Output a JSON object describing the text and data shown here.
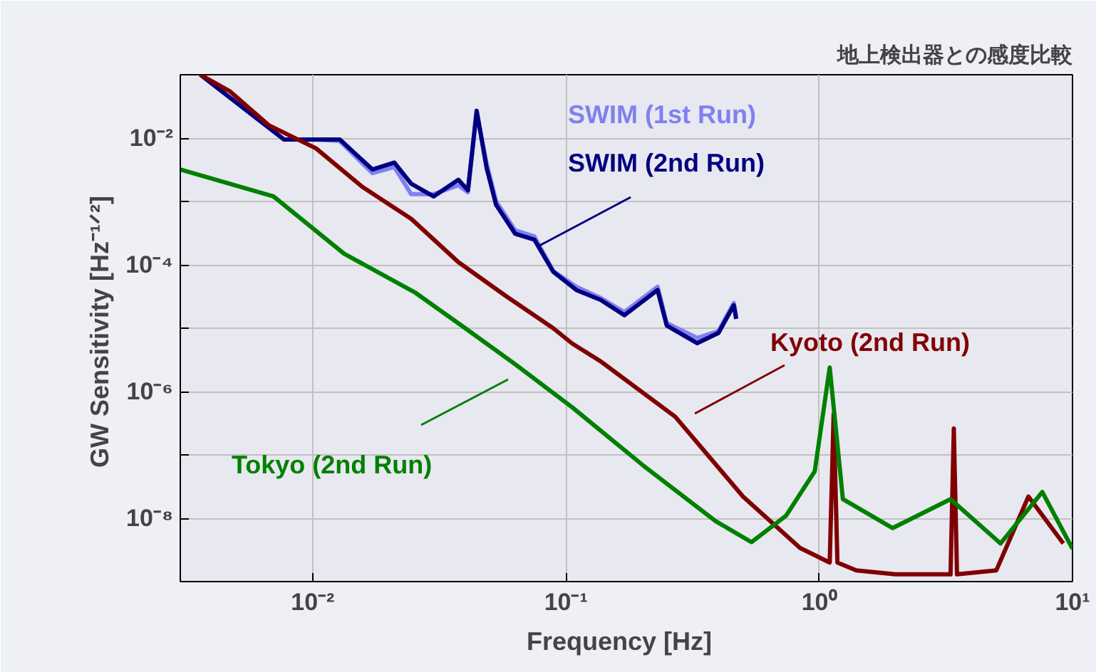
{
  "chart_data": {
    "type": "line",
    "title": "地上検出器との感度比較",
    "xlabel": "Frequency   [Hz]",
    "ylabel": "GW Sensitivity  [Hz⁻¹ᐟ²]",
    "log": "xy",
    "grid": true,
    "legend": false,
    "line_style": "solid",
    "marker": "none",
    "xlim": [
      0.003,
      10
    ],
    "ylim": [
      1e-09,
      0.1
    ],
    "xticks": [
      {
        "value": 0.01,
        "label": "10⁻²"
      },
      {
        "value": 0.1,
        "label": "10⁻¹"
      },
      {
        "value": 1,
        "label": "10⁰"
      },
      {
        "value": 10,
        "label": "10¹"
      }
    ],
    "yticks": [
      {
        "value": 1e-09,
        "label": null
      },
      {
        "value": 1e-08,
        "label": "10⁻⁸"
      },
      {
        "value": 1e-07,
        "label": null
      },
      {
        "value": 1e-06,
        "label": "10⁻⁶"
      },
      {
        "value": 1e-05,
        "label": null
      },
      {
        "value": 0.0001,
        "label": "10⁻⁴"
      },
      {
        "value": 0.001,
        "label": null
      },
      {
        "value": 0.01,
        "label": "10⁻²"
      },
      {
        "value": 0.1,
        "label": null
      }
    ],
    "series": [
      {
        "name": "SWIM (1st Run)",
        "color": "#8080f0",
        "x": [
          0.0036,
          0.0077,
          0.0103,
          0.0128,
          0.0172,
          0.021,
          0.0245,
          0.03,
          0.0376,
          0.041,
          0.0444,
          0.0486,
          0.053,
          0.063,
          0.075,
          0.089,
          0.11,
          0.137,
          0.17,
          0.23,
          0.25,
          0.33,
          0.4,
          0.46,
          0.47
        ],
        "values": [
          0.1,
          0.0095,
          0.0095,
          0.009,
          0.0028,
          0.0035,
          0.0013,
          0.0013,
          0.0018,
          0.0014,
          0.025,
          0.004,
          0.001,
          0.00035,
          0.00028,
          8e-05,
          4.5e-05,
          3e-05,
          1.8e-05,
          4.5e-05,
          1.2e-05,
          7e-06,
          9e-06,
          2.5e-05,
          1.5e-05
        ]
      },
      {
        "name": "SWIM (2nd Run)",
        "color": "#000080",
        "x": [
          0.0036,
          0.0077,
          0.0103,
          0.0128,
          0.0172,
          0.021,
          0.0245,
          0.03,
          0.0376,
          0.041,
          0.0444,
          0.0486,
          0.053,
          0.063,
          0.075,
          0.089,
          0.11,
          0.137,
          0.17,
          0.23,
          0.25,
          0.33,
          0.4,
          0.46,
          0.47
        ],
        "values": [
          0.1,
          0.0095,
          0.0095,
          0.0095,
          0.0032,
          0.0041,
          0.0019,
          0.0012,
          0.0022,
          0.0015,
          0.027,
          0.0034,
          0.00088,
          0.00031,
          0.00025,
          7.8e-05,
          4e-05,
          2.8e-05,
          1.6e-05,
          4e-05,
          1.1e-05,
          5.8e-06,
          8.4e-06,
          2.3e-05,
          1.4e-05
        ]
      },
      {
        "name": "Kyoto (2nd Run)",
        "color": "#800000",
        "x": [
          0.0036,
          0.0047,
          0.0067,
          0.0103,
          0.0157,
          0.0245,
          0.0376,
          0.058,
          0.089,
          0.106,
          0.137,
          0.27,
          0.5,
          0.84,
          1.1,
          1.14,
          1.18,
          1.4,
          2,
          3.3,
          3.4,
          3.5,
          5,
          6.7,
          9.2
        ],
        "values": [
          0.1,
          0.055,
          0.016,
          0.0069,
          0.0017,
          0.00053,
          0.00011,
          3.2e-05,
          1e-05,
          5.7e-06,
          3e-06,
          4e-07,
          2.2e-08,
          3.4e-09,
          2e-09,
          4.4e-07,
          2e-09,
          1.5e-09,
          1.3e-09,
          1.3e-09,
          2.6e-07,
          1.3e-09,
          1.5e-09,
          2.2e-08,
          4e-09
        ]
      },
      {
        "name": "Tokyo (2nd Run)",
        "color": "#008000",
        "x": [
          0.003,
          0.007,
          0.0133,
          0.0255,
          0.04,
          0.063,
          0.106,
          0.2,
          0.39,
          0.54,
          0.74,
          0.96,
          1.1,
          1.24,
          1.95,
          3.3,
          5.2,
          7.6,
          10
        ],
        "values": [
          0.0032,
          0.0012,
          0.00015,
          3.6e-05,
          1e-05,
          2.7e-06,
          5.6e-07,
          7e-08,
          9e-09,
          4.2e-09,
          1.1e-08,
          5.5e-08,
          2.4e-06,
          2e-08,
          7e-09,
          2e-08,
          4e-09,
          2.6e-08,
          3.3e-09
        ]
      }
    ]
  }
}
